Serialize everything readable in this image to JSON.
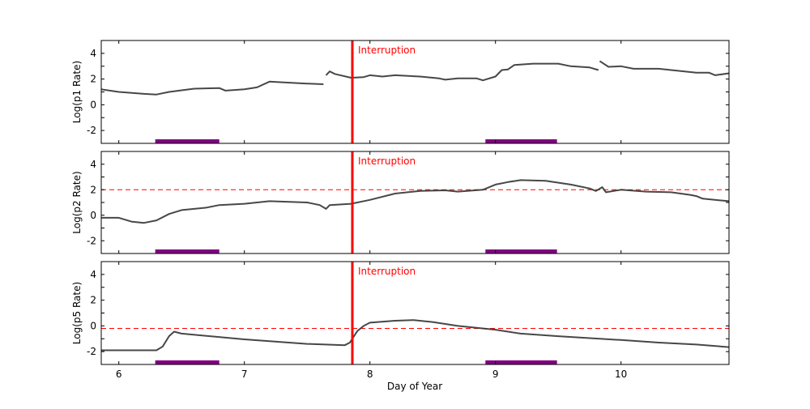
{
  "chart_data": [
    {
      "type": "line",
      "ylabel": "Log(p1 Rate)",
      "xlim": [
        5.86,
        10.86
      ],
      "ylim": [
        -3,
        5
      ],
      "yticks": [
        -2,
        0,
        2,
        4
      ],
      "annotation": {
        "text": "Interruption",
        "x": 7.86,
        "color": "#ff0000"
      },
      "highlight_bars": [
        [
          6.29,
          6.8
        ],
        [
          8.92,
          9.49
        ]
      ],
      "highlight_color": "#800080",
      "series_color": "#333333",
      "segments": [
        [
          [
            5.86,
            1.2
          ],
          [
            6.0,
            1.0
          ],
          [
            6.2,
            0.85
          ],
          [
            6.3,
            0.8
          ],
          [
            6.4,
            1.0
          ],
          [
            6.6,
            1.25
          ],
          [
            6.8,
            1.3
          ],
          [
            6.85,
            1.1
          ],
          [
            7.0,
            1.2
          ],
          [
            7.1,
            1.35
          ],
          [
            7.2,
            1.8
          ],
          [
            7.3,
            1.75
          ],
          [
            7.5,
            1.65
          ],
          [
            7.63,
            1.6
          ]
        ],
        [
          [
            7.65,
            2.3
          ],
          [
            7.68,
            2.6
          ],
          [
            7.72,
            2.4
          ],
          [
            7.85,
            2.1
          ],
          [
            7.95,
            2.15
          ],
          [
            8.0,
            2.3
          ],
          [
            8.1,
            2.2
          ],
          [
            8.2,
            2.3
          ],
          [
            8.4,
            2.2
          ],
          [
            8.55,
            2.05
          ],
          [
            8.6,
            1.95
          ],
          [
            8.7,
            2.05
          ],
          [
            8.85,
            2.05
          ],
          [
            8.9,
            1.9
          ],
          [
            9.0,
            2.2
          ],
          [
            9.05,
            2.7
          ],
          [
            9.1,
            2.75
          ],
          [
            9.15,
            3.1
          ],
          [
            9.3,
            3.2
          ],
          [
            9.5,
            3.2
          ],
          [
            9.6,
            3.0
          ],
          [
            9.75,
            2.9
          ],
          [
            9.82,
            2.7
          ]
        ],
        [
          [
            9.83,
            3.4
          ],
          [
            9.9,
            2.95
          ],
          [
            10.0,
            3.0
          ],
          [
            10.1,
            2.8
          ],
          [
            10.3,
            2.8
          ],
          [
            10.5,
            2.6
          ],
          [
            10.6,
            2.5
          ],
          [
            10.7,
            2.5
          ],
          [
            10.75,
            2.3
          ],
          [
            10.86,
            2.45
          ]
        ]
      ]
    },
    {
      "type": "line",
      "ylabel": "Log(p2 Rate)",
      "xlim": [
        5.86,
        10.86
      ],
      "ylim": [
        -3,
        5
      ],
      "yticks": [
        -2,
        0,
        2,
        4
      ],
      "reference_line": 2,
      "annotation": {
        "text": "Interruption",
        "x": 7.86,
        "color": "#ff0000"
      },
      "highlight_bars": [
        [
          6.29,
          6.8
        ],
        [
          8.92,
          9.49
        ]
      ],
      "highlight_color": "#800080",
      "series_color": "#333333",
      "segments": [
        [
          [
            5.86,
            -0.2
          ],
          [
            6.0,
            -0.2
          ],
          [
            6.1,
            -0.5
          ],
          [
            6.2,
            -0.6
          ],
          [
            6.3,
            -0.4
          ],
          [
            6.4,
            0.1
          ],
          [
            6.5,
            0.4
          ],
          [
            6.7,
            0.6
          ],
          [
            6.8,
            0.8
          ],
          [
            7.0,
            0.9
          ],
          [
            7.2,
            1.1
          ],
          [
            7.5,
            1.0
          ],
          [
            7.6,
            0.8
          ],
          [
            7.65,
            0.5
          ],
          [
            7.68,
            0.8
          ],
          [
            7.85,
            0.9
          ],
          [
            8.0,
            1.2
          ],
          [
            8.2,
            1.7
          ],
          [
            8.4,
            1.9
          ],
          [
            8.6,
            1.95
          ],
          [
            8.7,
            1.85
          ],
          [
            8.9,
            2.0
          ],
          [
            9.0,
            2.4
          ],
          [
            9.1,
            2.6
          ],
          [
            9.2,
            2.75
          ],
          [
            9.4,
            2.7
          ],
          [
            9.6,
            2.4
          ],
          [
            9.75,
            2.1
          ],
          [
            9.8,
            1.9
          ],
          [
            9.85,
            2.2
          ],
          [
            9.88,
            1.8
          ],
          [
            10.0,
            2.0
          ],
          [
            10.2,
            1.85
          ],
          [
            10.4,
            1.8
          ],
          [
            10.55,
            1.6
          ],
          [
            10.6,
            1.5
          ],
          [
            10.65,
            1.3
          ],
          [
            10.86,
            1.1
          ]
        ]
      ]
    },
    {
      "type": "line",
      "ylabel": "Log(p5 Rate)",
      "xlabel": "Day of Year",
      "xlim": [
        5.86,
        10.86
      ],
      "ylim": [
        -3,
        5
      ],
      "xticks": [
        6,
        7,
        8,
        9,
        10
      ],
      "yticks": [
        -2,
        0,
        2,
        4
      ],
      "reference_line": -0.2,
      "annotation": {
        "text": "Interruption",
        "x": 7.86,
        "color": "#ff0000"
      },
      "highlight_bars": [
        [
          6.29,
          6.8
        ],
        [
          8.92,
          9.49
        ]
      ],
      "highlight_color": "#800080",
      "series_color": "#333333",
      "segments": [
        [
          [
            5.86,
            -1.9
          ],
          [
            6.3,
            -1.9
          ],
          [
            6.35,
            -1.6
          ],
          [
            6.4,
            -0.8
          ],
          [
            6.44,
            -0.45
          ],
          [
            6.5,
            -0.6
          ],
          [
            7.0,
            -1.05
          ],
          [
            7.5,
            -1.4
          ],
          [
            7.8,
            -1.5
          ],
          [
            7.84,
            -1.3
          ],
          [
            7.9,
            -0.4
          ],
          [
            7.95,
            0.0
          ],
          [
            8.0,
            0.25
          ],
          [
            8.2,
            0.4
          ],
          [
            8.35,
            0.45
          ],
          [
            8.5,
            0.3
          ],
          [
            8.7,
            0.0
          ],
          [
            9.0,
            -0.3
          ],
          [
            9.2,
            -0.6
          ],
          [
            9.5,
            -0.8
          ],
          [
            10.0,
            -1.1
          ],
          [
            10.3,
            -1.3
          ],
          [
            10.6,
            -1.45
          ],
          [
            10.86,
            -1.65
          ]
        ]
      ]
    }
  ]
}
